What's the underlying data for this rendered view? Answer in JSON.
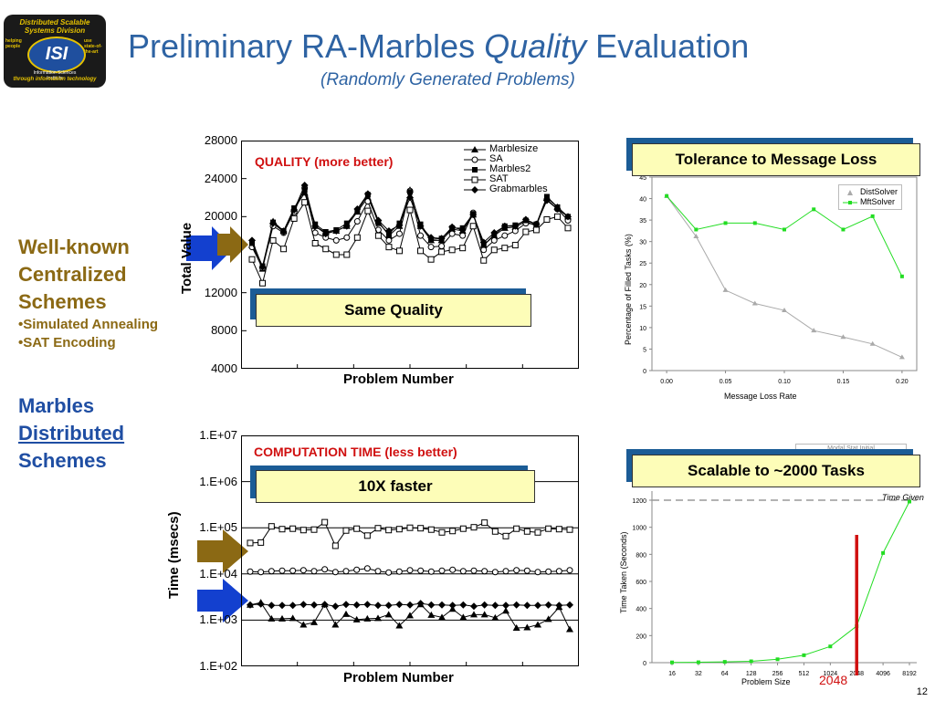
{
  "logo": {
    "top_text": "Distributed Scalable Systems Division",
    "mark": "ISI",
    "sub_text": "Information Sciences Institute",
    "left_text": "helping people",
    "right_text": "use state-of-the-art",
    "bottom_text": "through information technology"
  },
  "title": {
    "main": "Preliminary RA-Marbles ",
    "italic": "Quality",
    "end": " Evaluation",
    "subtitle": "(Randomly Generated Problems)"
  },
  "sidebar": {
    "centralized": {
      "line1": "Well-known",
      "line2": "Centralized",
      "line3": "Schemes",
      "item1": "•Simulated Annealing",
      "item2": "•SAT Encoding"
    },
    "distributed": {
      "line1": "Marbles",
      "line2": "Distributed",
      "line3": "Schemes"
    }
  },
  "callouts": {
    "same_quality": "Same Quality",
    "faster": "10X faster",
    "tolerance": "Tolerance to Message Loss",
    "scalable": "Scalable to ~2000 Tasks"
  },
  "colors": {
    "title_blue": "#2e63a3",
    "gold": "#8b6914",
    "side_blue": "#1f4ea3",
    "red": "#d01010",
    "arrow_gold": "#8b6914",
    "arrow_blue": "#1340cf"
  },
  "page_number": "12",
  "chart_data": [
    {
      "id": "quality",
      "type": "line",
      "annotation": "QUALITY (more better)",
      "xlabel": "Problem Number",
      "ylabel": "Total Value",
      "ylim": [
        4000,
        28000
      ],
      "yticks": [
        "28000",
        "24000",
        "20000",
        "12000",
        "8000",
        "4000"
      ],
      "ytick_values": [
        28000,
        24000,
        20000,
        12000,
        8000,
        4000
      ],
      "series": [
        {
          "name": "Marblesize",
          "marker": "triangle",
          "values": [
            17000,
            14500,
            19500,
            18500,
            20800,
            22500,
            19000,
            18300,
            18500,
            19000,
            20500,
            22000,
            19500,
            18000,
            19000,
            22800,
            19000,
            17500,
            17500,
            18700,
            18500,
            20200,
            17000,
            18000,
            18800,
            18900,
            19500,
            19000,
            22000,
            21000,
            20000
          ]
        },
        {
          "name": "SA",
          "marker": "circle",
          "values": [
            16800,
            14600,
            19000,
            18300,
            20500,
            23000,
            18300,
            17800,
            17500,
            17800,
            19500,
            21600,
            18600,
            17500,
            18200,
            22700,
            18000,
            16800,
            16900,
            18200,
            18000,
            20400,
            16500,
            17500,
            18000,
            18500,
            19300,
            19200,
            21800,
            20800,
            19600
          ]
        },
        {
          "name": "Marbles2",
          "marker": "square",
          "values": [
            17200,
            14800,
            19400,
            18500,
            20900,
            22800,
            19200,
            18400,
            18600,
            19300,
            20600,
            22300,
            19300,
            18200,
            19300,
            22600,
            19200,
            17600,
            17700,
            18800,
            18800,
            20300,
            17000,
            18100,
            19000,
            19100,
            19600,
            19200,
            22100,
            21000,
            20000
          ]
        },
        {
          "name": "SAT",
          "marker": "square-open",
          "values": [
            15500,
            13000,
            17500,
            16600,
            19800,
            21500,
            17200,
            16600,
            16000,
            16000,
            17800,
            20600,
            18000,
            16800,
            16400,
            20700,
            16400,
            15500,
            16300,
            16500,
            16700,
            19000,
            15400,
            16500,
            16700,
            17000,
            18400,
            18600,
            19700,
            20000,
            18800
          ]
        },
        {
          "name": "Grabmarbles",
          "marker": "diamond",
          "values": [
            17500,
            14700,
            19300,
            18400,
            20700,
            23300,
            19000,
            18200,
            18500,
            19000,
            20800,
            22400,
            19600,
            18500,
            19100,
            22000,
            19000,
            17800,
            17700,
            18900,
            18600,
            20200,
            17300,
            18300,
            19000,
            19000,
            19700,
            19200,
            21700,
            20800,
            20000
          ]
        }
      ]
    },
    {
      "id": "time",
      "type": "line",
      "annotation": "COMPUTATION TIME (less better)",
      "xlabel": "Problem Number",
      "ylabel": "Time (msecs)",
      "yscale": "log",
      "yticks": [
        "1.E+07",
        "1.E+06",
        "1.E+05",
        "1.E+04",
        "1.E+03",
        "1.E+02"
      ],
      "ytick_values": [
        7,
        6,
        5,
        4,
        3,
        2
      ],
      "series": [
        {
          "name": "SAT",
          "marker": "square-open",
          "values": [
            4.67,
            4.68,
            5.03,
            4.97,
            4.98,
            4.95,
            4.96,
            5.12,
            4.61,
            4.94,
            4.98,
            4.83,
            4.99,
            4.95,
            4.97,
            5.0,
            4.99,
            4.96,
            4.9,
            4.93,
            4.98,
            5.01,
            5.11,
            4.92,
            4.82,
            4.98,
            4.92,
            4.9,
            4.98,
            4.97,
            4.96
          ]
        },
        {
          "name": "SA",
          "marker": "circle",
          "values": [
            4.05,
            4.04,
            4.06,
            4.07,
            4.07,
            4.08,
            4.06,
            4.1,
            4.04,
            4.06,
            4.09,
            4.12,
            4.06,
            4.03,
            4.05,
            4.08,
            4.07,
            4.05,
            4.07,
            4.09,
            4.06,
            4.07,
            4.06,
            4.04,
            4.06,
            4.08,
            4.07,
            4.04,
            4.05,
            4.06,
            4.08
          ]
        },
        {
          "name": "Grabmarbles",
          "marker": "diamond",
          "values": [
            3.33,
            3.35,
            3.32,
            3.32,
            3.32,
            3.34,
            3.33,
            3.34,
            3.3,
            3.34,
            3.33,
            3.34,
            3.32,
            3.32,
            3.34,
            3.33,
            3.36,
            3.33,
            3.33,
            3.32,
            3.33,
            3.3,
            3.33,
            3.32,
            3.32,
            3.33,
            3.32,
            3.32,
            3.33,
            3.32,
            3.33
          ]
        },
        {
          "name": "Marblesize",
          "marker": "triangle",
          "values": [
            3.33,
            3.38,
            3.03,
            3.03,
            3.04,
            2.9,
            2.95,
            3.34,
            2.9,
            3.13,
            3.01,
            3.03,
            3.04,
            3.12,
            2.88,
            3.1,
            3.34,
            3.11,
            3.06,
            3.24,
            3.06,
            3.12,
            3.12,
            3.05,
            3.2,
            2.83,
            2.84,
            2.9,
            3.02,
            3.28,
            2.8
          ]
        }
      ]
    },
    {
      "id": "tolerance",
      "type": "line",
      "xlabel": "Message Loss Rate",
      "ylabel": "Percentage of Filled Tasks (%)",
      "ylim": [
        0,
        45
      ],
      "xlim": [
        -0.0125,
        0.2125
      ],
      "xticks": [
        0.0,
        0.05,
        0.1,
        0.15,
        0.2
      ],
      "xtick_labels": [
        "0.00",
        "0.05",
        "0.10",
        "0.15",
        "0.20"
      ],
      "yticks": [
        0,
        5,
        10,
        15,
        20,
        25,
        30,
        35,
        40,
        45
      ],
      "x": [
        0.0,
        0.025,
        0.05,
        0.075,
        0.1,
        0.125,
        0.15,
        0.175,
        0.2
      ],
      "series": [
        {
          "name": "DistSolver",
          "color": "#aaaaaa",
          "values": [
            40.6,
            31.2,
            18.7,
            15.6,
            14.0,
            9.3,
            7.8,
            6.2,
            3.1
          ]
        },
        {
          "name": "MftSolver",
          "color": "#22dd22",
          "values": [
            40.6,
            32.8,
            34.3,
            34.3,
            32.8,
            37.5,
            32.8,
            35.9,
            21.9
          ]
        }
      ]
    },
    {
      "id": "scalability",
      "type": "line",
      "xlabel": "Problem Size",
      "ylabel": "Time Taken (Seconds)",
      "ylim": [
        0,
        1200
      ],
      "yticks": [
        0,
        200,
        400,
        600,
        800,
        1000,
        1200
      ],
      "categories": [
        "16",
        "32",
        "64",
        "128",
        "256",
        "512",
        "1024",
        "2048",
        "4096",
        "8192"
      ],
      "highlight": "2048",
      "time_given_label": "Time Given",
      "time_given_value": 1200,
      "legend_partial": "Modal Stat Initial",
      "series": [
        {
          "name": "Time Taken",
          "color": "#22dd22",
          "values": [
            2,
            3,
            6,
            10,
            25,
            55,
            120,
            270,
            810,
            1190
          ]
        }
      ]
    }
  ]
}
